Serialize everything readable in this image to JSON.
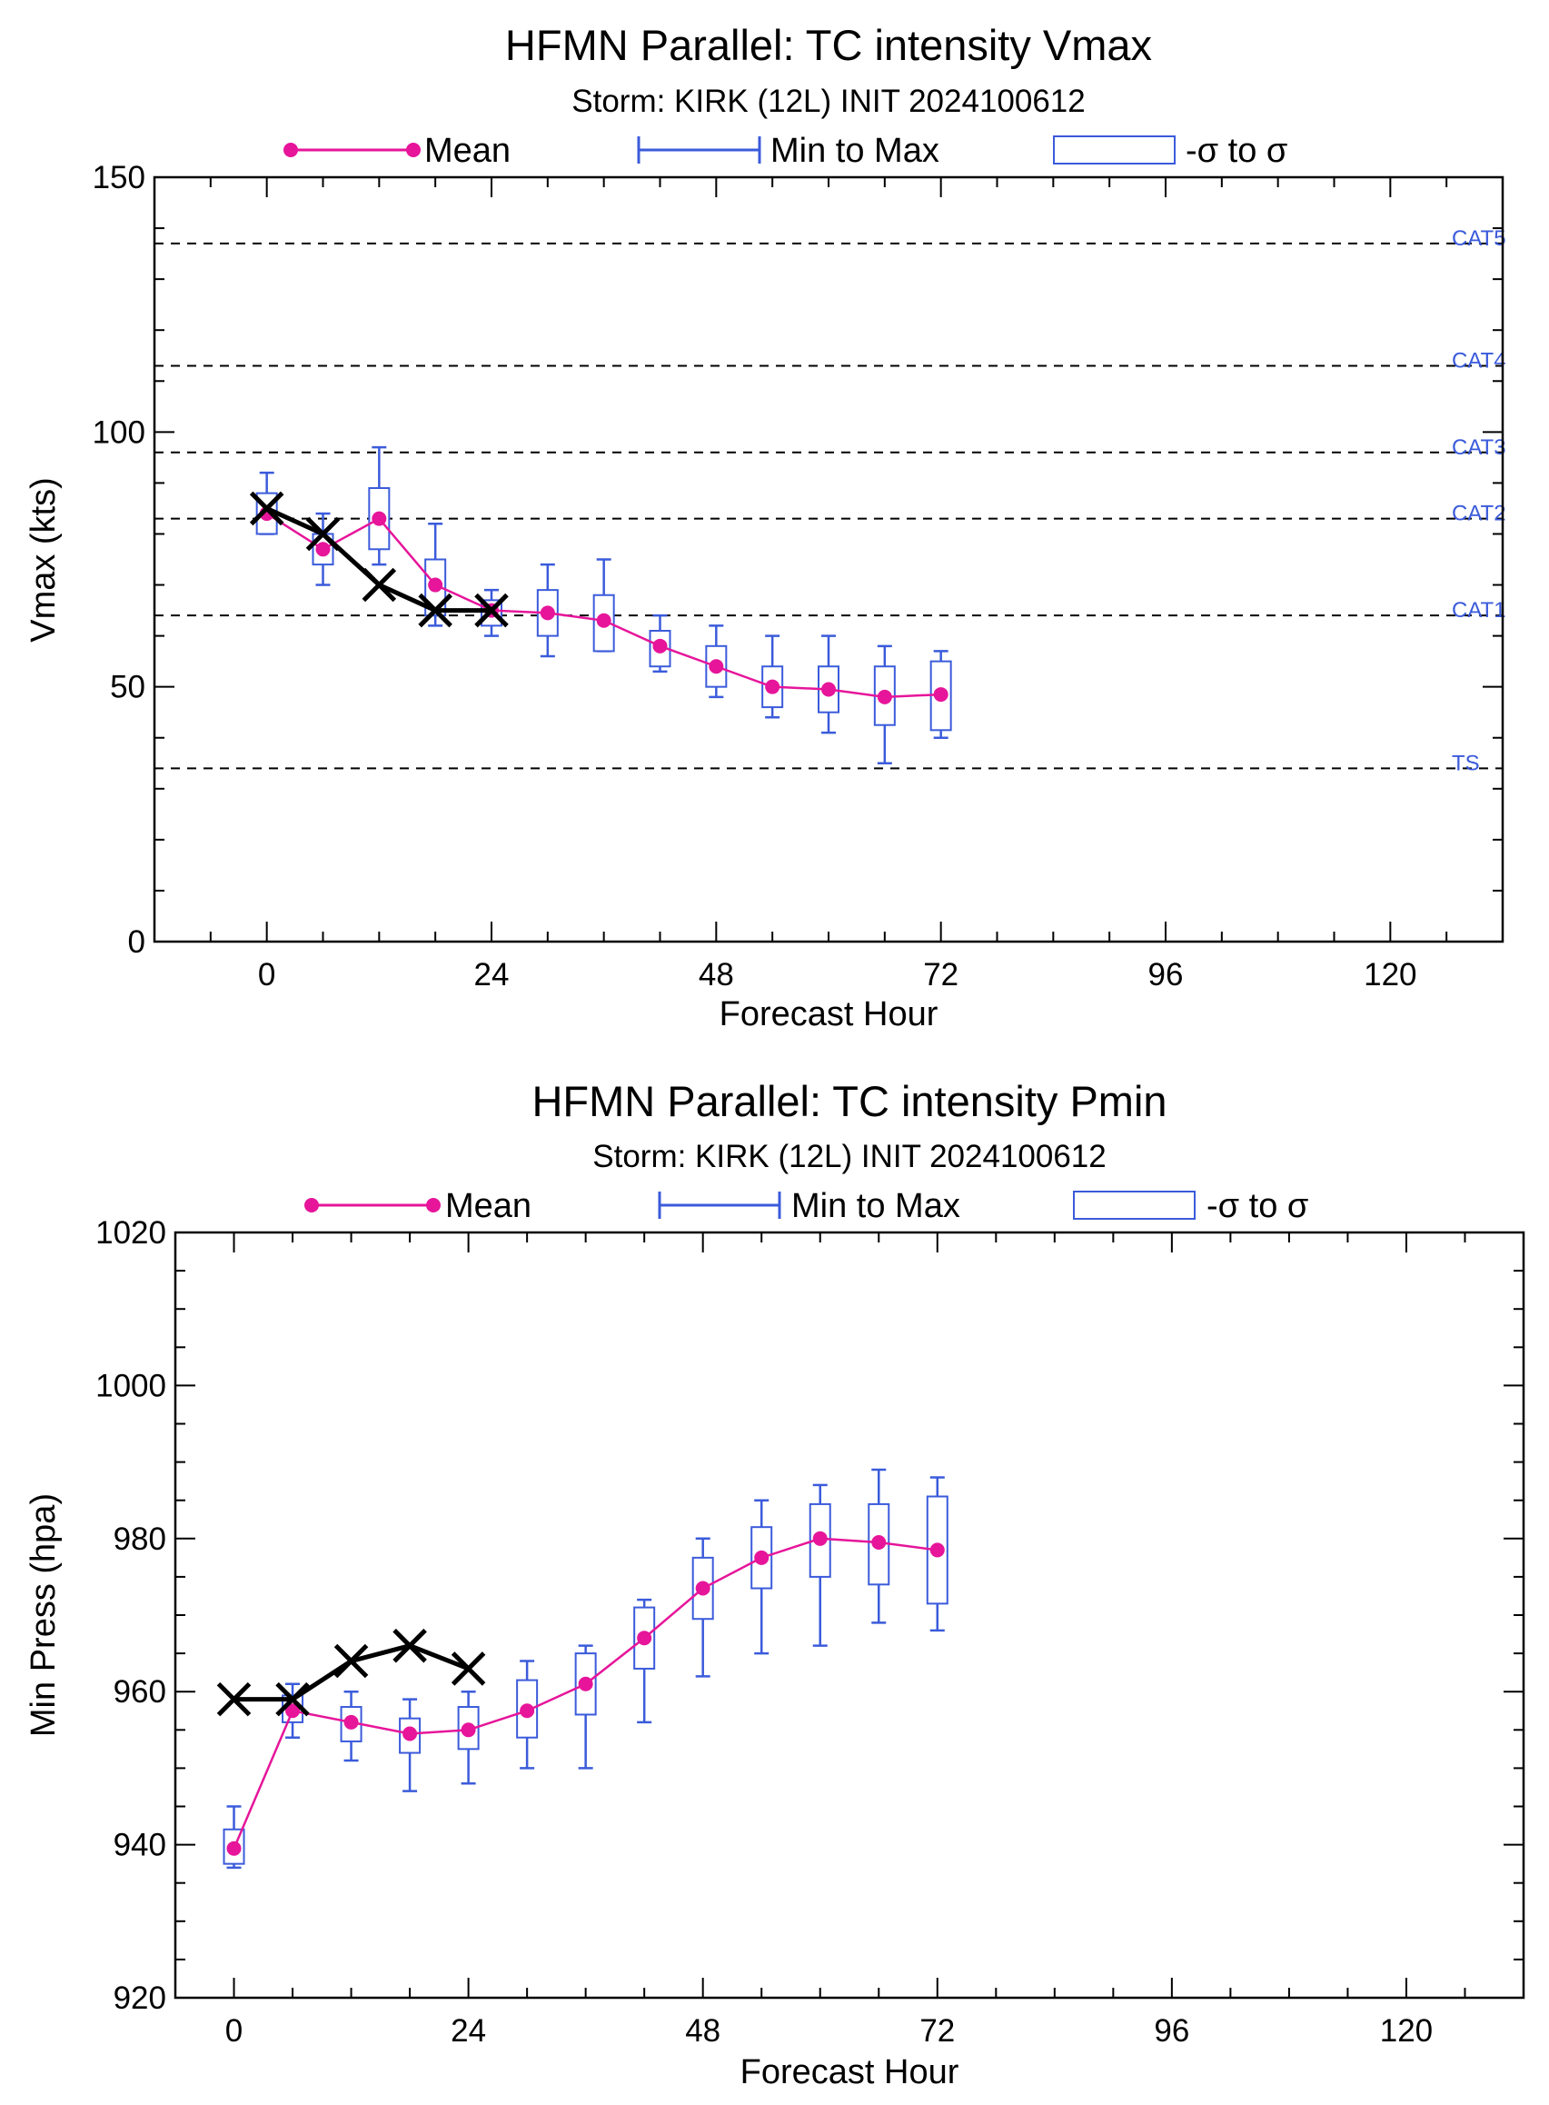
{
  "chart_data": [
    {
      "type": "line",
      "title": "HFMN Parallel: TC intensity Vmax",
      "subtitle": "Storm: KIRK (12L) INIT 2024100612",
      "xlabel": "Forecast Hour",
      "ylabel": "Vmax (kts)",
      "xlim": [
        -12,
        132
      ],
      "ylim": [
        0,
        150
      ],
      "xticks": [
        0,
        24,
        48,
        72,
        96,
        120
      ],
      "yticks": [
        0,
        50,
        100,
        150
      ],
      "legend": {
        "placement": "top",
        "entries": [
          {
            "label": "Mean"
          },
          {
            "label": "Min to Max"
          },
          {
            "label": "-σ to σ"
          }
        ]
      },
      "colors": {
        "mean": "#e6159a",
        "range": "#3b5bdb",
        "observed": "#000000"
      },
      "reference_lines": [
        {
          "label": "CAT5",
          "y": 137
        },
        {
          "label": "CAT4",
          "y": 113
        },
        {
          "label": "CAT3",
          "y": 96
        },
        {
          "label": "CAT2",
          "y": 83
        },
        {
          "label": "CAT1",
          "y": 64
        },
        {
          "label": "TS",
          "y": 34
        }
      ],
      "mean": {
        "x": [
          0,
          6,
          12,
          18,
          24,
          30,
          36,
          42,
          48,
          54,
          60,
          66,
          72
        ],
        "y": [
          84,
          77,
          83,
          70,
          65,
          64.5,
          63,
          58,
          54,
          50,
          49.5,
          48,
          48.5
        ]
      },
      "range": {
        "x": [
          0,
          6,
          12,
          18,
          24,
          30,
          36,
          42,
          48,
          54,
          60,
          66,
          72
        ],
        "min": [
          80,
          70,
          74,
          62,
          60,
          56,
          57,
          53,
          48,
          44,
          41,
          35,
          40
        ],
        "max": [
          92,
          84,
          97,
          82,
          69,
          74,
          75,
          64,
          62,
          60,
          60,
          58,
          57
        ],
        "sig_lo": [
          80,
          74,
          77,
          64,
          62,
          60,
          57,
          54,
          50,
          46,
          45,
          42.5,
          41.5
        ],
        "sig_hi": [
          88,
          80,
          89,
          75,
          67,
          69,
          68,
          61,
          58,
          54,
          54,
          54,
          55
        ]
      },
      "observed": {
        "x": [
          0,
          6,
          12,
          18,
          24
        ],
        "y": [
          85,
          80,
          70,
          65,
          65
        ]
      }
    },
    {
      "type": "line",
      "title": "HFMN Parallel: TC intensity Pmin",
      "subtitle": "Storm: KIRK (12L) INIT 2024100612",
      "xlabel": "Forecast Hour",
      "ylabel": "Min Press (hpa)",
      "xlim": [
        -6,
        132
      ],
      "ylim": [
        920,
        1020
      ],
      "xticks": [
        0,
        24,
        48,
        72,
        96,
        120
      ],
      "yticks": [
        920,
        940,
        960,
        980,
        1000,
        1020
      ],
      "legend": {
        "placement": "top",
        "entries": [
          {
            "label": "Mean"
          },
          {
            "label": "Min to Max"
          },
          {
            "label": "-σ to σ"
          }
        ]
      },
      "colors": {
        "mean": "#e6159a",
        "range": "#3b5bdb",
        "observed": "#000000"
      },
      "mean": {
        "x": [
          0,
          6,
          12,
          18,
          24,
          30,
          36,
          42,
          48,
          54,
          60,
          66,
          72
        ],
        "y": [
          939.5,
          957.5,
          956,
          954.5,
          955,
          957.5,
          961,
          967,
          973.5,
          977.5,
          980,
          979.5,
          978.5
        ]
      },
      "range": {
        "x": [
          0,
          6,
          12,
          18,
          24,
          30,
          36,
          42,
          48,
          54,
          60,
          66,
          72
        ],
        "min": [
          937,
          954,
          951,
          947,
          948,
          950,
          950,
          956,
          962,
          965,
          966,
          969,
          968
        ],
        "max": [
          945,
          961,
          960,
          959,
          960,
          964,
          966,
          972,
          980,
          985,
          987,
          989,
          988
        ],
        "sig_lo": [
          937.5,
          956,
          953.5,
          952,
          952.5,
          954,
          957,
          963,
          969.5,
          973.5,
          975,
          974,
          971.5
        ],
        "sig_hi": [
          942,
          959.5,
          958,
          956.5,
          958,
          961.5,
          965,
          971,
          977.5,
          981.5,
          984.5,
          984.5,
          985.5
        ]
      },
      "observed": {
        "x": [
          0,
          6,
          12,
          18,
          24
        ],
        "y": [
          959,
          959,
          964,
          966,
          963
        ]
      }
    }
  ]
}
